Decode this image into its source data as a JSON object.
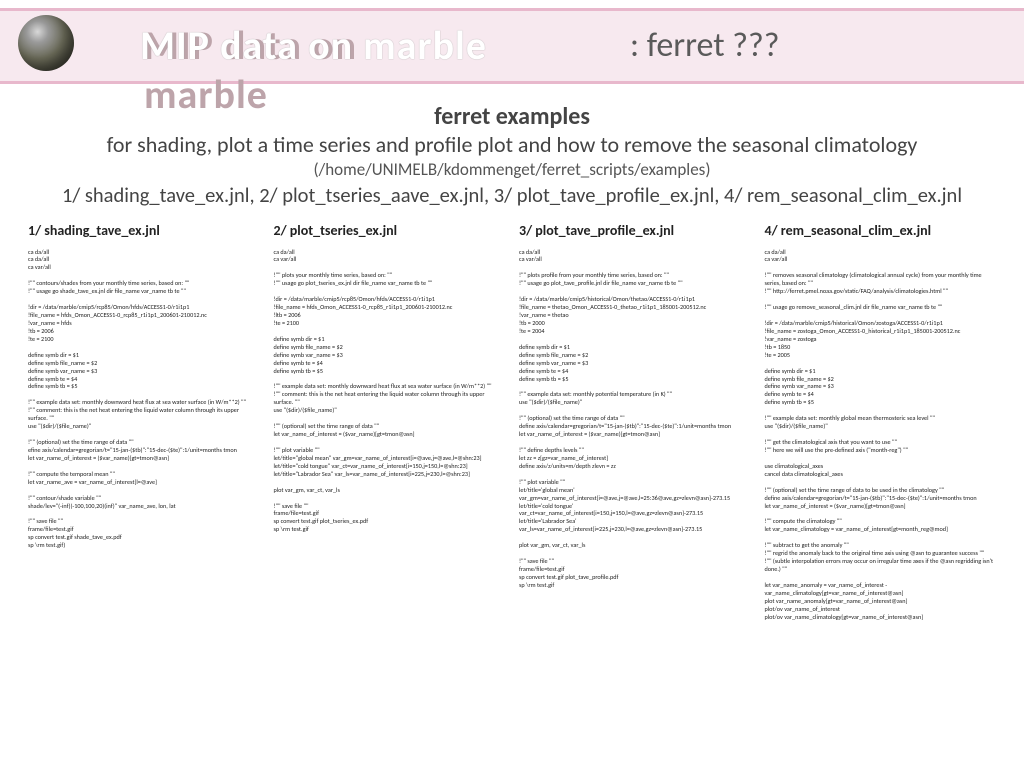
{
  "header": {
    "logo": "MIP data on marble",
    "suffix": ":  ferret ???"
  },
  "intro": {
    "heading": "ferret examples",
    "subtitle": "for shading, plot a time series and profile plot and how to remove the seasonal climatology",
    "path": "(/home/UNIMELB/kdommenget/ferret_scripts/examples)",
    "files": "1/ shading_tave_ex.jnl, 2/ plot_tseries_aave_ex.jnl, 3/ plot_tave_profile_ex.jnl, 4/ rem_seasonal_clim_ex.jnl"
  },
  "cols": [
    {
      "title": "1/ shading_tave_ex.jnl",
      "body": "ca da/all\nca da/all\nca var/all\n\n!\"\" contours/shades from your monthly time series, based on: \"\"\n!\"\" usage go shade_tave_ex.jnl dir file_name var_name tb te \"\"\n\n!dir = /data/marble/cmip5/rcp85/Omon/hfds/ACCESS1-0/r1i1p1\n!file_name = hfds_Omon_ACCESS1-0_rcp85_r1i1p1_200601-210012.nc\n!var_name = hfds\n!tb = 2006\n!te = 2100\n\ndefine symb dir = $1\ndefine symb file_name = $2\ndefine symb var_name = $3\ndefine symb te = $4\ndefine symb tb = $5\n\n!\"\" example data set: monthly downward heat flux at sea water surface (in W/m**2) \"\"\n!\"\" comment: this is the net heat entering the liquid water column through its upper surface. \"\"\nuse \"($dir)/($file_name)\"\n\n!\"\" (optional) set the time range of data \"\"\nefine axis/calendar=gregorian/t=\"15-jan-($tb)\":\"15-dec-($te)\":1/unit=months tmon\nlet var_name_of_interest = ($var_name)[gt=tmon@asn]\n\n!\"\" compute the temporal mean \"\"\nlet var_name_ave = var_name_of_interest[l=@ave]\n\n!\"\" contour/shade variable \"\"\nshade/lev=\"(-inf)(-100,100,20)(inf)\" var_name_ave, lon, lat\n\n!\"\" save file \"\"\nframe/file=test.gif\nsp convert test.gif shade_tave_ex.pdf\nsp \\rm test.gif)"
    },
    {
      "title": "2/ plot_tseries_ex.jnl",
      "body": "ca da/all\nca var/all\n\n!\"\" plots your monthly time series, based on: \"\"\n!\"\" usage go plot_tseries_ex.jnl dir file_name var_name tb te \"\"\n\n!dir = /data/marble/cmip5/rcp85/Omon/hfds/ACCESS1-0/r1i1p1\n!file_name = hfds_Omon_ACCESS1-0_rcp85_r1i1p1_200601-210012.nc\n!ltb = 2006\n!te = 2100\n\ndefine symb dir = $1\ndefine symb file_name = $2\ndefine symb var_name = $3\ndefine symb te = $4\ndefine symb tb = $5\n\n!\"\" example data set: monthly downward heat flux at sea water surface (in W/m**2) \"\"\n!\"\" comment: this is the net heat entering the liquid water column through its upper surface. \"\"\nuse \"($dir)/($file_name)\"\n\n!\"\" (optional) set the time range of data \"\"\nlet var_name_of_interest = ($var_name)[gt=tmon@asn]\n\n!\"\" plot variable \"\"\nlet/title=\"global mean\" var_gm=var_name_of_interest[i=@ave,j=@ave,l=@shn:23]\nlet/title=\"cold tongue\" var_ct=var_name_of_interest[i=150,j=150,l=@shn:23]\nlet/title=\"Labrador Sea\" var_ls=var_name_of_interest[i=225,j=230,l=@shn:23]\n\nplot var_gm, var_ct, var_ls\n\n!\"\" save file \"\"\nframe/file=test.gif\nsp convert test.gif plot_tseries_ex.pdf\nsp \\rm test.gif"
    },
    {
      "title": "3/ plot_tave_profile_ex.jnl",
      "body": "ca da/all\nca var/all\n\n!\"\" plots profile from your monthly time series, based on: \"\"\n!\"\" usage go plot_tave_profile.jnl dir file_name var_name tb te \"\"\n\n!dir = /data/marble/cmip5/historical/Omon/thetao/ACCESS1-0/r1i1p1\n!file_name = thetao_Omon_ACCESS1-0_thetao_r1i1p1_185001-200512.nc\n!var_name = thetao\n!tb = 2000\n!te = 2004\n\ndefine symb dir = $1\ndefine symb file_name = $2\ndefine symb var_name = $3\ndefine symb te = $4\ndefine symb tb = $5\n\n!\"\" example data set: monthly potential temperature (in K) \"\"\nuse \"($dir)/($file_name)\"\n\n!\"\" (optional) set the time range of data \"\"\ndefine axis/calendar=gregorian/t=\"15-jan-($tb)\":\"15-dec-($te)\":1/unit=months tmon\nlet var_name_of_interest = ($var_name)[gt=tmon@asn]\n\n!\"\" define depths levels \"\"\nlet zz = z[gz=var_name_of_interest]\ndefine axis/z/units=m/depth zlevn = zz\n\n!\"\" plot variable \"\"\nlet/title='global mean' var_gm=var_name_of_interest[i=@ave,j=@ave,l=25:36@ave,gz=zlevn@asn]-273.15\nlet/title='cold tongue' var_ct=var_name_of_interest[i=150,j=150,l=@ave,gz=zlevn@asn]-273.15\nlet/title='Labrador Sea' var_ls=var_name_of_interest[i=225,j=230,l=@ave,gz=zlevn@asn]-273.15\n\nplot var_gm, var_ct, var_ls\n\n!\"\" save file \"\"\nframe/file=test.gif\nsp convert test.gif plot_tave_profile.pdf\nsp \\rm test.gif"
    },
    {
      "title": "4/ rem_seasonal_clim_ex.jnl",
      "body": "ca da/all\nca var/all\n\n!\"\" removes seasonal climatology (climatological annual cycle) from your monthly time series, based on: \"\"\n!\"\" http://ferret.pmel.noaa.gov/static/FAQ/analysis/climatologies.html \"\"\n\n!\"\" usage go remove_seasonal_clim.jnl dir file_name var_name tb te \"\"\n\n!dir = /data/marble/cmip5/historical/Omon/zostoga/ACCESS1-0/r1i1p1\n!file_name = zostoga_Omon_ACCESS1-0_historical_r1i1p1_185001-200512.nc\n!var_name = zostoga\n!tb = 1850\n!te = 2005\n\ndefine symb dir = $1\ndefine symb file_name = $2\ndefine symb var_name = $3\ndefine symb te = $4\ndefine symb tb = $5\n\n!\"\" example data set: monthly global mean thermosteric sea level \"\"\nuse \"($dir)/($file_name)\"\n\n!\"\" get the climatological axis that you want to use \"\"\n!\"\" here we will use the pre-defined axis (\"month-reg\") \"\"\n\nuse climatological_axes\ncancel data climatological_axes\n\n!\"\" (optional) set the time range of data to be used in the climatology \"\"\ndefine axis/calendar=gregorian/t=\"15-jan-($tb)\":\"15-dec-($te)\":1/unit=months tmon\nlet var_name_of_interest = ($var_name)[gt=tmon@asn]\n\n!\"\" compute the climatology \"\"\nlet var_name_climatology = var_name_of_interest[gt=month_reg@mod]\n\n!\"\" subtract to get the anomaly \"\"\n!\"\" regrid the anomaly back to the original time axis using @asn to guarantee success \"\"\n!\"\" (subtle interpolation errors may occur on irregular time axes if the @asn regridding isn't done.) \"\"\n\nlet var_name_anomaly = var_name_of_interest - var_name_climatology[gt=var_name_of_interest@asn]\nplot var_name_anomaly[gt=var_name_of_interest@asn]\nplot/ov var_name_of_interest\nplot/ov var_name_climatology[gt=var_name_of_interest@asn]"
    }
  ]
}
